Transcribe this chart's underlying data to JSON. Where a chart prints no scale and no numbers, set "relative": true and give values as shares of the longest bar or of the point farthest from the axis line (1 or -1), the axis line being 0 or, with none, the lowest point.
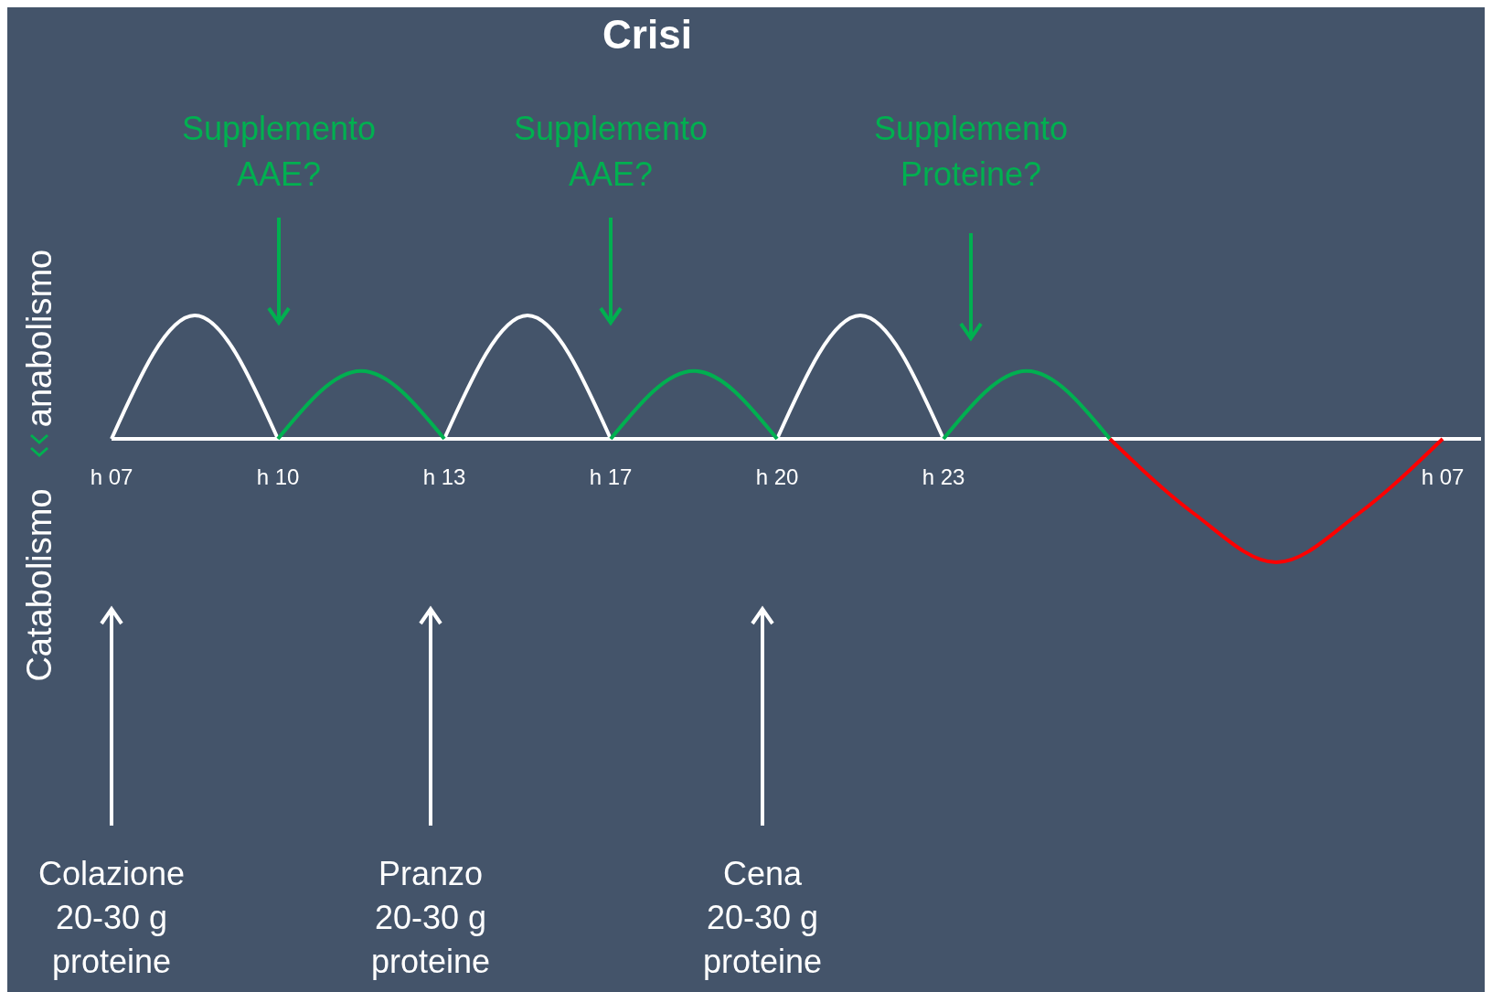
{
  "chart_data": {
    "type": "line",
    "title": "Crisi",
    "ylabel": "anabolismo",
    "relative": true,
    "categories": [
      "h 07",
      null,
      "h 10",
      null,
      "h 13",
      null,
      "h 17",
      null,
      "h 20",
      null,
      "h 23",
      null,
      null,
      null,
      null,
      null,
      "h 07"
    ],
    "series": [
      {
        "color": "#ffffff",
        "values": [
          0,
          1,
          0,
          null,
          0,
          1,
          0,
          null,
          0,
          1,
          0,
          null,
          null,
          null,
          null,
          null,
          null
        ]
      },
      {
        "color": "#00b050",
        "values": [
          null,
          null,
          0,
          0.55,
          0,
          null,
          0,
          0.55,
          0,
          null,
          0,
          0.55,
          0,
          null,
          null,
          null,
          null
        ]
      },
      {
        "color": "#ff0000",
        "values": [
          null,
          null,
          null,
          null,
          null,
          null,
          null,
          null,
          null,
          null,
          null,
          null,
          0,
          -0.6,
          -1,
          -0.6,
          0
        ]
      }
    ],
    "annotations": [
      "Supplemento\nAAE?",
      "Supplemento\nAAE?",
      "Supplemento\nProteine?",
      "Colazione\n20-30 g\nproteine",
      "Pranzo\n20-30 g\nproteine",
      "Cena\n20-30 g\nproteine",
      "Catabolismo"
    ]
  }
}
